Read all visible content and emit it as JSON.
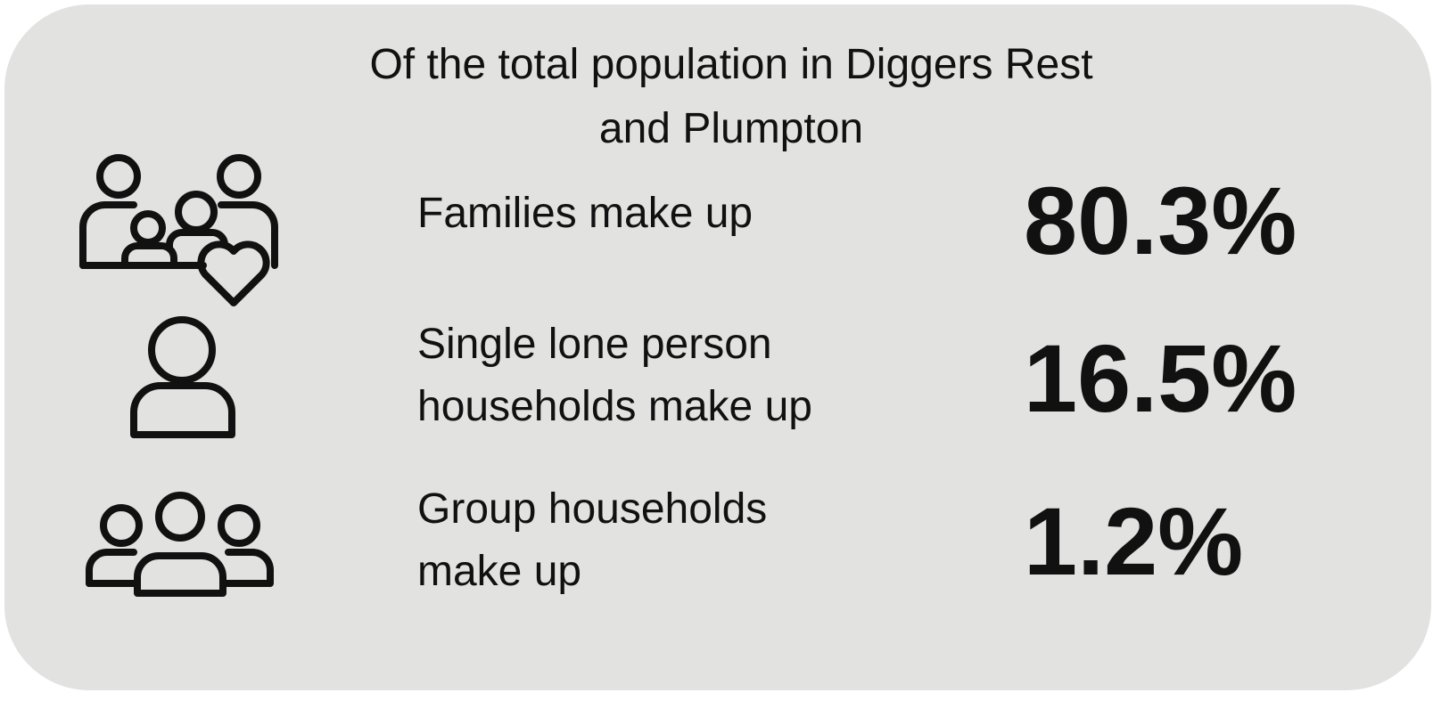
{
  "title": [
    "Of the total population in Diggers Rest",
    "and Plumpton"
  ],
  "items": [
    {
      "label": [
        "Families make up"
      ],
      "value": "80.3%"
    },
    {
      "label": [
        "Single lone person",
        "households make up"
      ],
      "value": "16.5%"
    },
    {
      "label": [
        "Group households",
        "make up"
      ],
      "value": "1.2%"
    }
  ]
}
